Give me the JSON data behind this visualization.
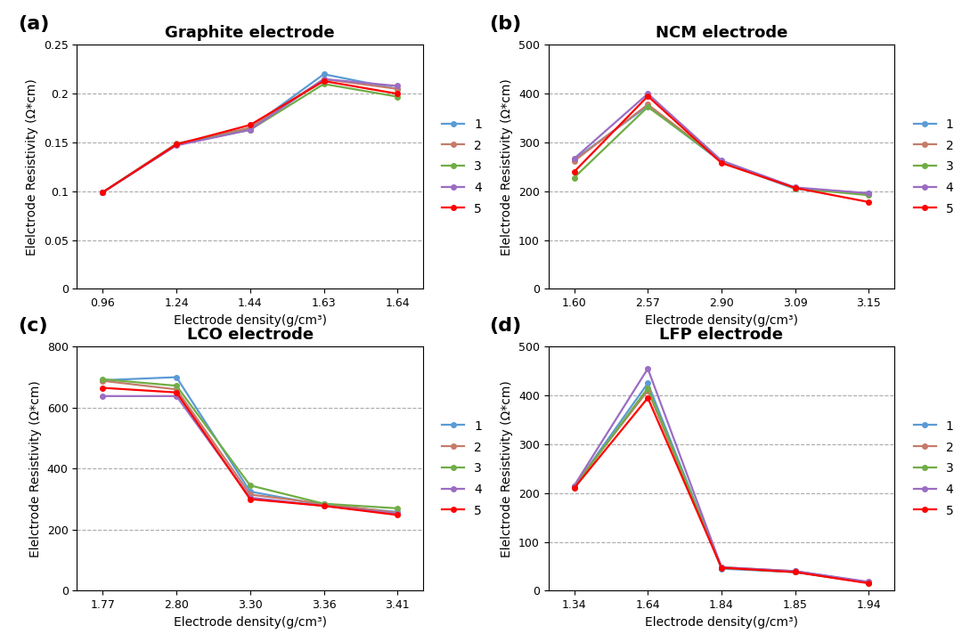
{
  "panels": [
    {
      "label": "(a)",
      "title": "Graphite electrode",
      "x_ticks": [
        "0.96",
        "1.24",
        "1.44",
        "1.63",
        "1.64"
      ],
      "xlabel": "Electrode density(g/cm³)",
      "ylabel": "Elelctrode Resistivity (Ω*cm)",
      "ylim": [
        0,
        0.25
      ],
      "yticks": [
        0,
        0.05,
        0.1,
        0.15,
        0.2,
        0.25
      ],
      "ytick_labels": [
        "0",
        "0.05",
        "0.1",
        "0.15",
        "0.2",
        "0.25"
      ],
      "series": [
        {
          "label": "1",
          "color": "#5B9BD5",
          "values": [
            0.099,
            0.148,
            0.165,
            0.22,
            0.205
          ]
        },
        {
          "label": "2",
          "color": "#C47C6A",
          "values": [
            0.099,
            0.149,
            0.165,
            0.215,
            0.205
          ]
        },
        {
          "label": "3",
          "color": "#70AD47",
          "values": [
            0.099,
            0.148,
            0.163,
            0.21,
            0.197
          ]
        },
        {
          "label": "4",
          "color": "#9B6DC3",
          "values": [
            0.099,
            0.147,
            0.163,
            0.215,
            0.208
          ]
        },
        {
          "label": "5",
          "color": "#FF0000",
          "values": [
            0.099,
            0.148,
            0.168,
            0.213,
            0.2
          ]
        }
      ]
    },
    {
      "label": "(b)",
      "title": "NCM electrode",
      "x_ticks": [
        "1.60",
        "2.57",
        "2.90",
        "3.09",
        "3.15"
      ],
      "xlabel": "Electrode density(g/cm³)",
      "ylabel": "Elelctrode Resistivity (Ω*cm)",
      "ylim": [
        0,
        500
      ],
      "yticks": [
        0,
        100,
        200,
        300,
        400,
        500
      ],
      "ytick_labels": [
        "0",
        "100",
        "200",
        "300",
        "400",
        "500"
      ],
      "series": [
        {
          "label": "1",
          "color": "#5B9BD5",
          "values": [
            265,
            375,
            260,
            205,
            196
          ]
        },
        {
          "label": "2",
          "color": "#C47C6A",
          "values": [
            262,
            378,
            262,
            207,
            195
          ]
        },
        {
          "label": "3",
          "color": "#70AD47",
          "values": [
            228,
            373,
            262,
            206,
            192
          ]
        },
        {
          "label": "4",
          "color": "#9B6DC3",
          "values": [
            267,
            400,
            263,
            208,
            196
          ]
        },
        {
          "label": "5",
          "color": "#FF0000",
          "values": [
            240,
            395,
            258,
            207,
            178
          ]
        }
      ]
    },
    {
      "label": "(c)",
      "title": "LCO electrode",
      "x_ticks": [
        "1.77",
        "2.80",
        "3.30",
        "3.36",
        "3.41"
      ],
      "xlabel": "Electrode density(g/cm³)",
      "ylabel": "Elelctrode Resistivity (Ω*cm)",
      "ylim": [
        0,
        800
      ],
      "yticks": [
        0,
        200,
        400,
        600,
        800
      ],
      "ytick_labels": [
        "0",
        "200",
        "400",
        "600",
        "800"
      ],
      "series": [
        {
          "label": "1",
          "color": "#5B9BD5",
          "values": [
            690,
            700,
            325,
            280,
            258
          ]
        },
        {
          "label": "2",
          "color": "#C47C6A",
          "values": [
            688,
            660,
            315,
            285,
            255
          ]
        },
        {
          "label": "3",
          "color": "#70AD47",
          "values": [
            693,
            672,
            345,
            285,
            270
          ]
        },
        {
          "label": "4",
          "color": "#9B6DC3",
          "values": [
            638,
            638,
            305,
            278,
            252
          ]
        },
        {
          "label": "5",
          "color": "#FF0000",
          "values": [
            665,
            650,
            300,
            278,
            248
          ]
        }
      ]
    },
    {
      "label": "(d)",
      "title": "LFP electrode",
      "x_ticks": [
        "1.34",
        "1.64",
        "1.84",
        "1.85",
        "1.94"
      ],
      "xlabel": "Electrode density(g/cm³)",
      "ylabel": "Elelctrode Resistivity (Ω*cm)",
      "ylim": [
        0,
        500
      ],
      "yticks": [
        0,
        100,
        200,
        300,
        400,
        500
      ],
      "ytick_labels": [
        "0",
        "100",
        "200",
        "300",
        "400",
        "500"
      ],
      "series": [
        {
          "label": "1",
          "color": "#5B9BD5",
          "values": [
            213,
            425,
            45,
            38,
            17
          ]
        },
        {
          "label": "2",
          "color": "#C47C6A",
          "values": [
            215,
            410,
            48,
            40,
            17
          ]
        },
        {
          "label": "3",
          "color": "#70AD47",
          "values": [
            212,
            415,
            47,
            38,
            16
          ]
        },
        {
          "label": "4",
          "color": "#9B6DC3",
          "values": [
            215,
            455,
            48,
            40,
            18
          ]
        },
        {
          "label": "5",
          "color": "#FF0000",
          "values": [
            210,
            395,
            47,
            38,
            15
          ]
        }
      ]
    }
  ],
  "background_color": "#FFFFFF",
  "label_fontsize": 16,
  "title_fontsize": 13,
  "axis_fontsize": 10,
  "tick_fontsize": 9,
  "legend_fontsize": 10,
  "line_width": 1.6,
  "marker": "o",
  "marker_size": 4
}
